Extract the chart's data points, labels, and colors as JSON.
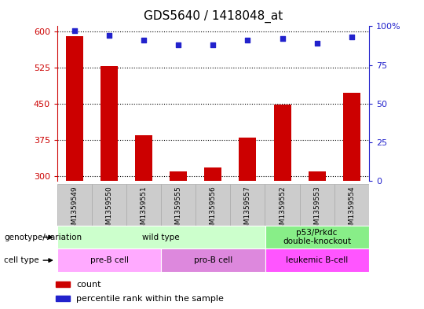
{
  "title": "GDS5640 / 1418048_at",
  "samples": [
    "GSM1359549",
    "GSM1359550",
    "GSM1359551",
    "GSM1359555",
    "GSM1359556",
    "GSM1359557",
    "GSM1359552",
    "GSM1359553",
    "GSM1359554"
  ],
  "counts": [
    590,
    527,
    385,
    310,
    317,
    380,
    448,
    310,
    473
  ],
  "percentiles": [
    97,
    94,
    91,
    88,
    88,
    91,
    92,
    89,
    93
  ],
  "ylim_left": [
    290,
    610
  ],
  "ylim_right": [
    0,
    100
  ],
  "yticks_left": [
    300,
    375,
    450,
    525,
    600
  ],
  "yticks_right": [
    0,
    25,
    50,
    75,
    100
  ],
  "bar_color": "#cc0000",
  "dot_color": "#2222cc",
  "bar_width": 0.5,
  "genotype_groups": [
    {
      "label": "wild type",
      "start": 0,
      "end": 6,
      "color": "#ccffcc"
    },
    {
      "label": "p53/Prkdc\ndouble-knockout",
      "start": 6,
      "end": 9,
      "color": "#88ee88"
    }
  ],
  "cell_type_groups": [
    {
      "label": "pre-B cell",
      "start": 0,
      "end": 3,
      "color": "#ffaaff"
    },
    {
      "label": "pro-B cell",
      "start": 3,
      "end": 6,
      "color": "#dd88dd"
    },
    {
      "label": "leukemic B-cell",
      "start": 6,
      "end": 9,
      "color": "#ff55ff"
    }
  ],
  "legend_count_label": "count",
  "legend_pct_label": "percentile rank within the sample",
  "genotype_label": "genotype/variation",
  "cell_type_label": "cell type",
  "left_axis_color": "#cc0000",
  "right_axis_color": "#2222cc",
  "sample_box_color": "#cccccc",
  "sample_box_edge": "#aaaaaa"
}
